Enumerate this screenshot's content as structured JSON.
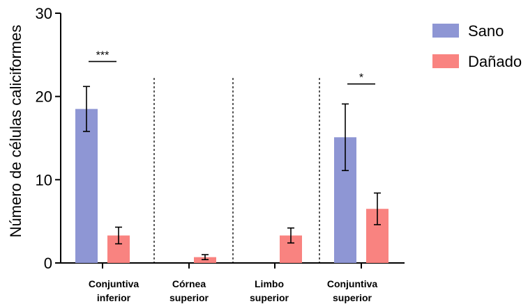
{
  "chart_data": {
    "type": "bar",
    "title": "",
    "xlabel": "",
    "ylabel": "Número de células caliciformes",
    "ylim": [
      0,
      30
    ],
    "yticks": [
      "0",
      "10",
      "20",
      "30"
    ],
    "ytick_values": [
      0,
      10,
      20,
      30
    ],
    "categories": [
      [
        "Conjuntiva",
        "inferior"
      ],
      [
        "Córnea",
        "superior"
      ],
      [
        "Limbo",
        "superior"
      ],
      [
        "Conjuntiva",
        "superior"
      ]
    ],
    "series": [
      {
        "name": "Sano",
        "color": "#8e96d4",
        "values": [
          18.5,
          0,
          0,
          15.1
        ],
        "errors": [
          2.7,
          0,
          0,
          4.0
        ]
      },
      {
        "name": "Dañado",
        "color": "#f98380",
        "values": [
          3.3,
          0.7,
          3.3,
          6.5
        ],
        "errors": [
          1.0,
          0.3,
          0.9,
          1.9
        ]
      }
    ],
    "significance": [
      {
        "category_index": 0,
        "label": "***",
        "y": 24.2
      },
      {
        "category_index": 3,
        "label": "*",
        "y": 21.5
      }
    ],
    "separators": true,
    "legend_position": "top-right",
    "grid": false
  }
}
